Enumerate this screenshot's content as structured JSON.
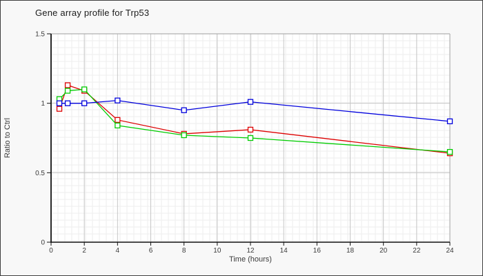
{
  "window": {
    "background": "#f8f8f8",
    "border_color": "#3f3f3f"
  },
  "header": {
    "title": "Gene array profile for Trp53"
  },
  "chart_data": {
    "type": "line",
    "title": "Gene array profile for Trp53",
    "xlabel": "Time (hours)",
    "ylabel": "Ratio to Ctrl",
    "xlim": [
      0,
      24
    ],
    "ylim": [
      0,
      1.5
    ],
    "x_ticks": [
      0,
      2,
      4,
      6,
      8,
      10,
      12,
      14,
      16,
      18,
      20,
      22,
      24
    ],
    "y_ticks": [
      0,
      0.5,
      1,
      1.5
    ],
    "y_tick_labels": [
      "0",
      "0.5",
      "1",
      "1.5"
    ],
    "grid": {
      "minor": "fixed 10px graph-paper grid",
      "major_vertical_every_hours": 2,
      "major_horizontal_every_units": 0.5,
      "minor_color": "#ededed",
      "major_color": "#c6c6c6",
      "frame_color": "#b0b0b0",
      "axis_color": "#111111"
    },
    "legend": "none",
    "marker": "open-square",
    "x": [
      0.5,
      1,
      2,
      4,
      8,
      12,
      24
    ],
    "series": [
      {
        "name": "series-red",
        "color": "#dd0000",
        "values": [
          0.96,
          1.13,
          1.09,
          0.88,
          0.78,
          0.81,
          0.64
        ]
      },
      {
        "name": "series-green",
        "color": "#00cc00",
        "values": [
          1.03,
          1.09,
          1.1,
          0.84,
          0.77,
          0.75,
          0.65
        ]
      },
      {
        "name": "series-blue",
        "color": "#0000dd",
        "values": [
          1.0,
          1.0,
          1.0,
          1.02,
          0.95,
          1.01,
          0.87
        ]
      }
    ],
    "draw_order": [
      "series-red",
      "series-green",
      "series-blue"
    ],
    "tick_label_color": "#3a3a3a",
    "tick_label_font_px": 10
  }
}
